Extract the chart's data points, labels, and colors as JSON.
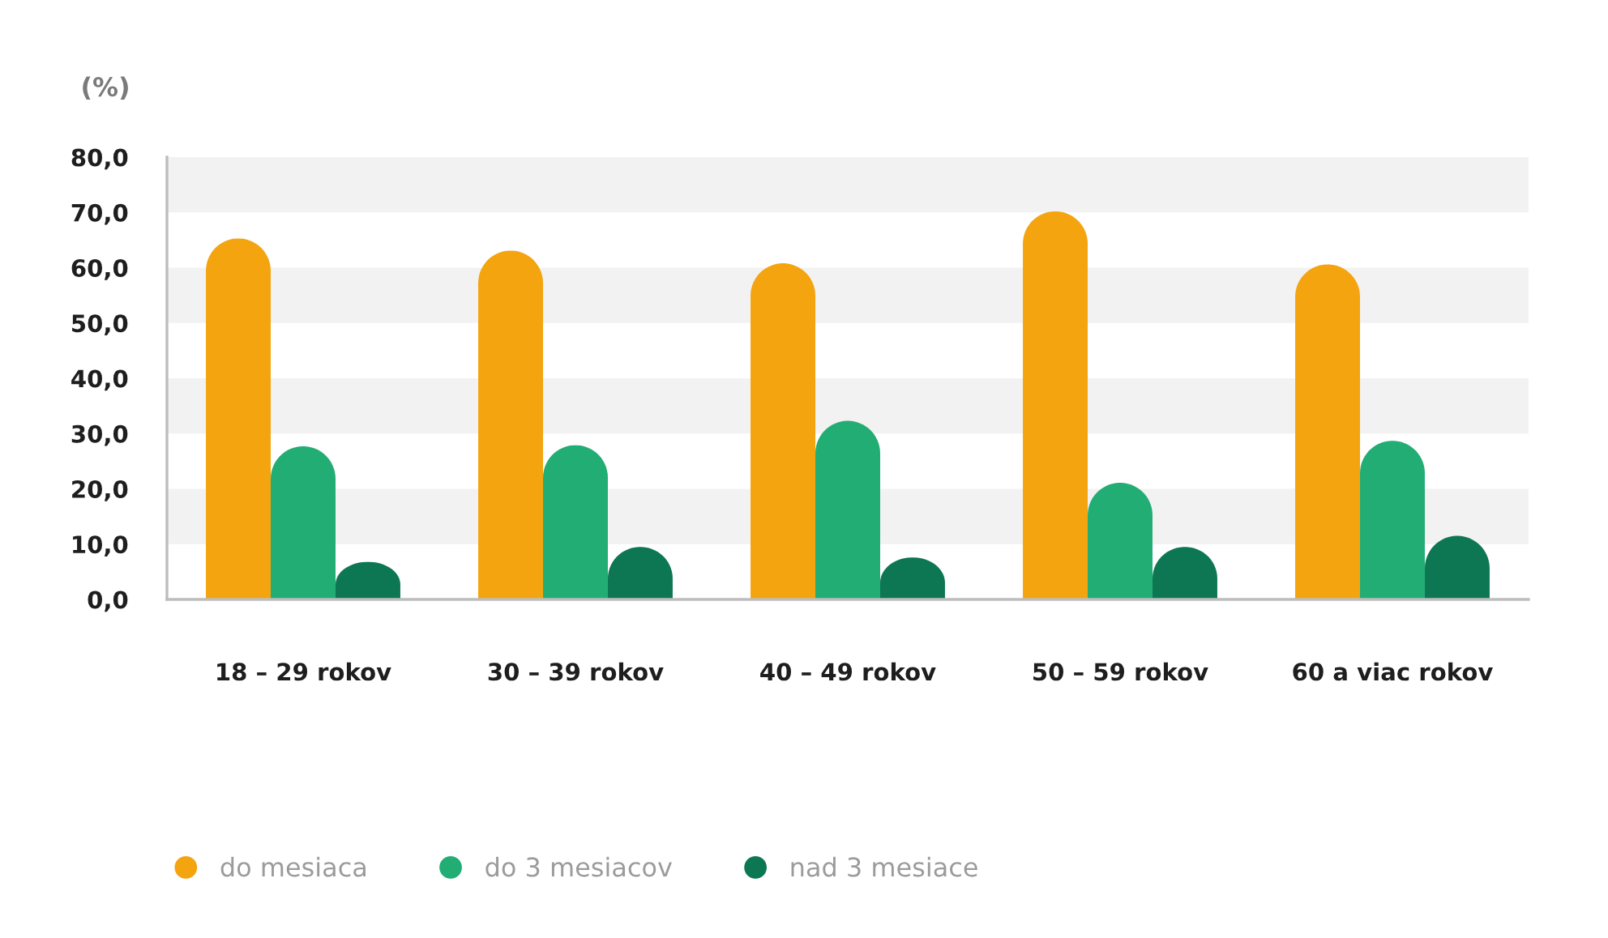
{
  "chart_data": {
    "type": "bar",
    "ylabel": "(%)",
    "categories": [
      "18 – 29 rokov",
      "30 – 39 rokov",
      "40 – 49 rokov",
      "50 – 59 rokov",
      "60 a viac rokov"
    ],
    "series": [
      {
        "name": "do mesiaca",
        "color": "#f4a40f",
        "values": [
          65.3,
          63.1,
          60.8,
          70.2,
          60.6
        ]
      },
      {
        "name": "do 3 mesiacov",
        "color": "#22ad74",
        "values": [
          27.7,
          27.9,
          32.3,
          21.1,
          28.7
        ]
      },
      {
        "name": "nad 3 mesiace",
        "color": "#0d7753",
        "values": [
          6.8,
          9.5,
          7.6,
          9.5,
          11.5
        ]
      }
    ],
    "ylim": [
      0,
      80
    ],
    "yticks": [
      {
        "value": 0,
        "label": "0,0"
      },
      {
        "value": 10,
        "label": "10,0"
      },
      {
        "value": 20,
        "label": "20,0"
      },
      {
        "value": 30,
        "label": "30,0"
      },
      {
        "value": 40,
        "label": "40,0"
      },
      {
        "value": 50,
        "label": "50,0"
      },
      {
        "value": 60,
        "label": "60,0"
      },
      {
        "value": 70,
        "label": "70,0"
      },
      {
        "value": 80,
        "label": "80,0"
      }
    ],
    "bands": [
      {
        "axis": "y",
        "from": 10,
        "to": 20,
        "color": "#f2f2f2"
      },
      {
        "axis": "y",
        "from": 30,
        "to": 40,
        "color": "#f2f2f2"
      },
      {
        "axis": "y",
        "from": 50,
        "to": 60,
        "color": "#f2f2f2"
      },
      {
        "axis": "y",
        "from": 70,
        "to": 80,
        "color": "#f2f2f2"
      }
    ],
    "grid": false,
    "legend": "bottom left"
  }
}
